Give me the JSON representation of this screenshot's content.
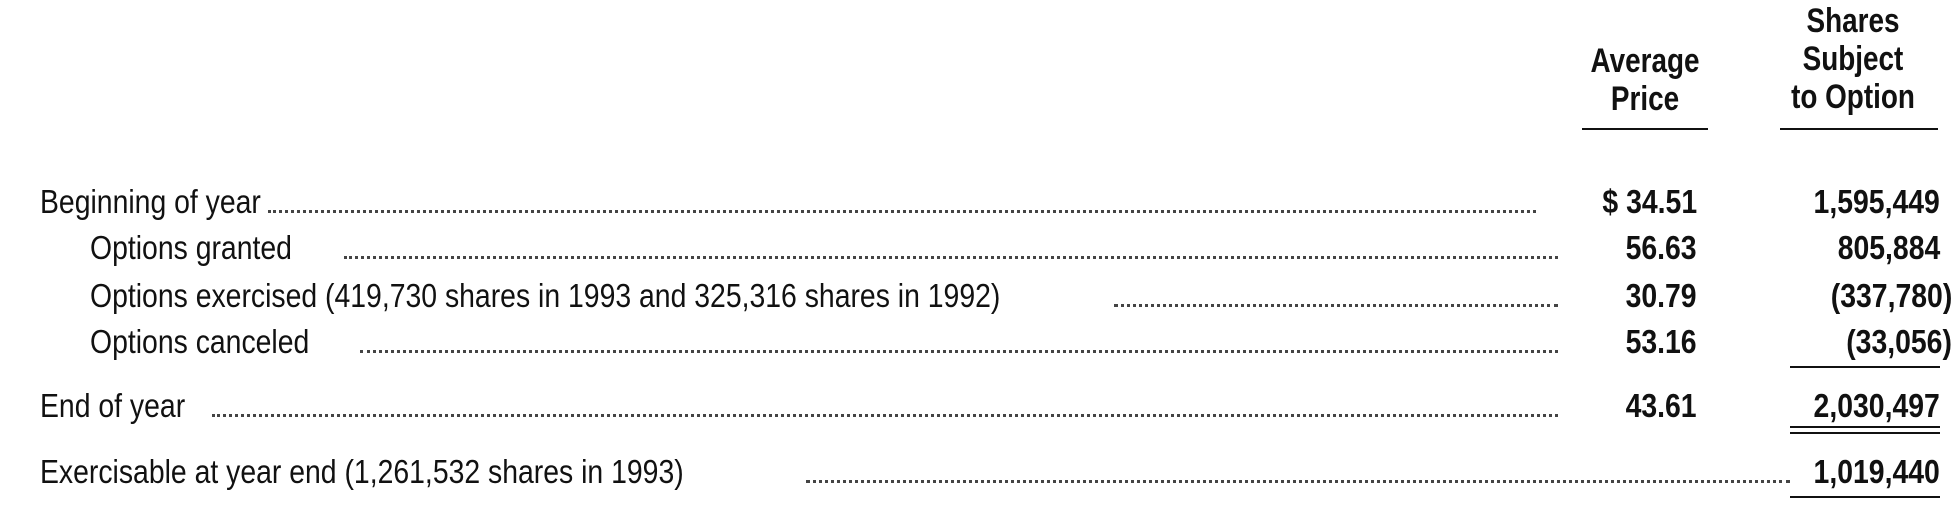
{
  "headers": {
    "price_line1": "Average",
    "price_line2": "Price",
    "shares_line1": "Shares",
    "shares_line2": "Subject",
    "shares_line3": "to Option"
  },
  "rows": [
    {
      "label": "Beginning of year",
      "price": "$ 34.51",
      "shares": "1,595,449"
    },
    {
      "label": "Options granted",
      "price": "56.63",
      "shares": "805,884"
    },
    {
      "label": "Options exercised (419,730 shares in 1993 and 325,316 shares in 1992)",
      "price": "30.79",
      "shares": "(337,780)"
    },
    {
      "label": "Options canceled",
      "price": "53.16",
      "shares": "(33,056)"
    },
    {
      "label": "End of year",
      "price": "43.61",
      "shares": "2,030,497"
    },
    {
      "label": "Exercisable at year end (1,261,532 shares in 1993)",
      "price": "",
      "shares": "1,019,440"
    }
  ]
}
